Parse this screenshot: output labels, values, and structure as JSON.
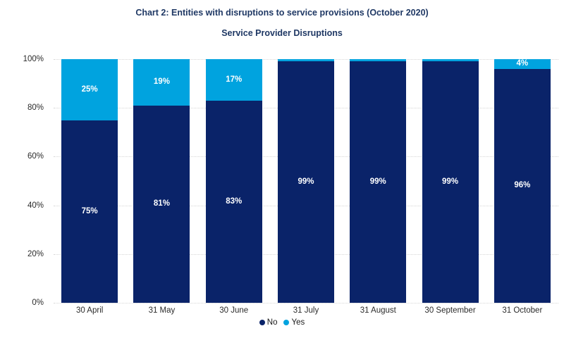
{
  "title": "Chart 2: Entities with disruptions to service provisions (October 2020)",
  "subtitle": "Service Provider Disruptions",
  "colors": {
    "no": "#0a2369",
    "yes": "#00a3df",
    "gridline": "#d6d6d6",
    "title_text": "#1f3864",
    "axis_text": "#2b2b2b",
    "bar_label": "#ffffff"
  },
  "y_axis": {
    "ticks": [
      {
        "label": "100%",
        "value": 100
      },
      {
        "label": "80%",
        "value": 80
      },
      {
        "label": "60%",
        "value": 60
      },
      {
        "label": "40%",
        "value": 40
      },
      {
        "label": "20%",
        "value": 20
      },
      {
        "label": "0%",
        "value": 0
      }
    ]
  },
  "legend": {
    "items": [
      {
        "label": "No",
        "color": "#0a2369"
      },
      {
        "label": "Yes",
        "color": "#00a3df"
      }
    ]
  },
  "chart_data": {
    "type": "bar",
    "stacked": true,
    "categories": [
      "30 April",
      "31 May",
      "30 June",
      "31 July",
      "31 August",
      "30 September",
      "31 October"
    ],
    "series": [
      {
        "name": "No",
        "color": "#0a2369",
        "values": [
          75,
          81,
          83,
          99,
          99,
          99,
          96
        ],
        "labels": [
          "75%",
          "81%",
          "83%",
          "99%",
          "99%",
          "99%",
          "96%"
        ]
      },
      {
        "name": "Yes",
        "color": "#00a3df",
        "values": [
          25,
          19,
          17,
          1,
          1,
          1,
          4
        ],
        "labels": [
          "25%",
          "19%",
          "17%",
          "",
          "",
          "",
          "4%"
        ]
      }
    ],
    "title": "Chart 2: Entities with disruptions to service provisions (October 2020)",
    "subtitle": "Service Provider Disruptions",
    "xlabel": "",
    "ylabel": "",
    "ylim": [
      0,
      100
    ],
    "grid": true,
    "gridline_style": "dotted",
    "legend_position": "bottom"
  }
}
